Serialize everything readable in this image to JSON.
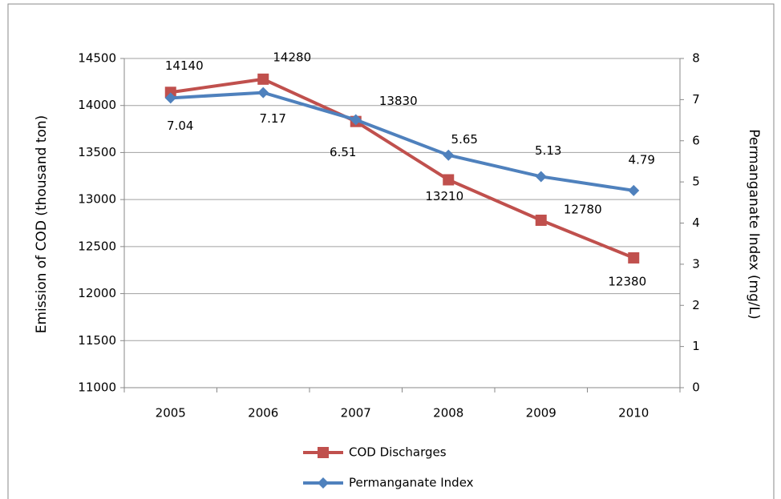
{
  "chart_data": {
    "type": "line",
    "categories": [
      "2005",
      "2006",
      "2007",
      "2008",
      "2009",
      "2010"
    ],
    "series": [
      {
        "name": "COD Discharges",
        "color": "#c0504d",
        "marker": "square",
        "values": [
          14140,
          14280,
          13830,
          13210,
          12780,
          12380
        ]
      },
      {
        "name": "Permanganate Index",
        "color": "#4f81bd",
        "marker": "diamond",
        "axis": "y2",
        "values": [
          7.04,
          7.17,
          6.51,
          5.65,
          5.13,
          4.79
        ]
      }
    ],
    "ylabel": "Emission of COD (thousand ton)",
    "y2label": "Permanganate Index (mg/L)",
    "ylim": [
      11000,
      14500
    ],
    "yticks": [
      11000,
      11500,
      12000,
      12500,
      13000,
      13500,
      14000,
      14500
    ],
    "y2lim": [
      0,
      8
    ],
    "y2ticks": [
      0,
      1,
      2,
      3,
      4,
      5,
      6,
      7,
      8
    ],
    "grid": true,
    "legend": "bottom"
  }
}
